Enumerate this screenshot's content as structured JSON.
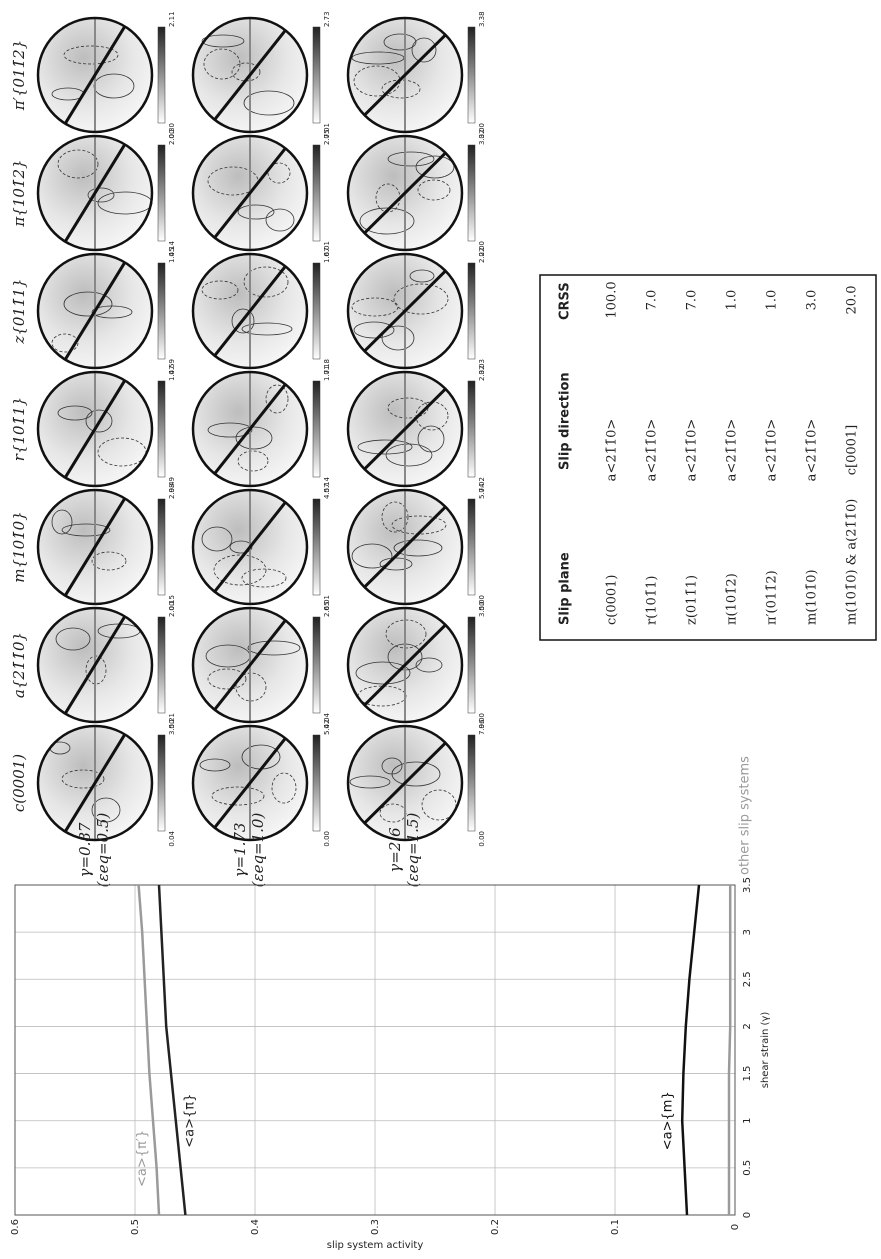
{
  "pole_figures": {
    "columns": [
      "c(0001)",
      "a{21̄1̄0}",
      "m{101̄0}",
      "r{101̄1}",
      "z{011̄1}",
      "π{101̄2}",
      "π′{011̄2}"
    ],
    "rows": [
      {
        "strain": "γ=0.87",
        "eq": "(εeq=0.5)"
      },
      {
        "strain": "γ=1.73",
        "eq": "(εeq=1.0)"
      },
      {
        "strain": "γ=2.6",
        "eq": "(εeq=1.5)"
      }
    ],
    "colorbars": [
      [
        {
          "max": "3.50",
          "min": "0.04"
        },
        {
          "max": "5.42",
          "min": "0.00"
        },
        {
          "max": "7.96",
          "min": "0.00"
        }
      ],
      [
        {
          "max": "2.00",
          "min": "0.21"
        },
        {
          "max": "2.65",
          "min": "0.04"
        },
        {
          "max": "3.50",
          "min": "0.00"
        }
      ],
      [
        {
          "max": "2.98",
          "min": "0.15"
        },
        {
          "max": "4.57",
          "min": "0.01"
        },
        {
          "max": "5.74",
          "min": "0.00"
        }
      ],
      [
        {
          "max": "1.47",
          "min": "0.49"
        },
        {
          "max": "1.71",
          "min": "0.14"
        },
        {
          "max": "2.32",
          "min": "0.02"
        }
      ],
      [
        {
          "max": "1.45",
          "min": "0.59"
        },
        {
          "max": "1.67",
          "min": "0.18"
        },
        {
          "max": "2.22",
          "min": "0.03"
        }
      ],
      [
        {
          "max": "2.00",
          "min": "0.14"
        },
        {
          "max": "2.75",
          "min": "0.01"
        },
        {
          "max": "3.32",
          "min": "0.00"
        }
      ],
      [
        {
          "max": "2.11",
          "min": "0.30"
        },
        {
          "max": "2.73",
          "min": "0.01"
        },
        {
          "max": "3.38",
          "min": "0.00"
        }
      ]
    ]
  },
  "chart_data": {
    "type": "line",
    "x": [
      0,
      0.5,
      1,
      1.5,
      2,
      2.5,
      3,
      3.5
    ],
    "series": [
      {
        "name": "<a>{π′}",
        "color": "#9a9a9a",
        "values": [
          0.48,
          0.482,
          0.485,
          0.488,
          0.49,
          0.492,
          0.494,
          0.497
        ]
      },
      {
        "name": "<a>{π}",
        "color": "#222222",
        "values": [
          0.458,
          0.462,
          0.466,
          0.47,
          0.474,
          0.476,
          0.478,
          0.48
        ]
      },
      {
        "name": "<a>{m}",
        "color": "#111111",
        "values": [
          0.04,
          0.042,
          0.044,
          0.043,
          0.041,
          0.038,
          0.034,
          0.03
        ]
      },
      {
        "name": "other slip systems",
        "color": "#9a9a9a",
        "values": [
          0.005,
          0.005,
          0.005,
          0.005,
          0.004,
          0.004,
          0.004,
          0.004
        ]
      }
    ],
    "xlabel": "shear strain (γ)",
    "ylabel": "slip system activity",
    "xlim": [
      0,
      3.5
    ],
    "xticks": [
      0,
      0.5,
      1,
      1.5,
      2,
      2.5,
      3,
      3.5
    ],
    "ylim": [
      0,
      0.6
    ],
    "yticks": [
      0,
      0.1,
      0.2,
      0.3,
      0.4,
      0.5,
      0.6
    ],
    "grid": true
  },
  "table": {
    "header": [
      "Slip plane",
      "Slip direction",
      "CRSS"
    ],
    "rows": [
      [
        "c(0001)",
        "a<21̄1̄0>",
        "100.0"
      ],
      [
        "r(101̄1)",
        "a<21̄1̄0>",
        "7.0"
      ],
      [
        "z(011̄1)",
        "a<21̄1̄0>",
        "7.0"
      ],
      [
        "π(101̄2)",
        "a<21̄1̄0>",
        "1.0"
      ],
      [
        "π′(011̄2)",
        "a<21̄1̄0>",
        "1.0"
      ],
      [
        "m(101̄0)",
        "a<21̄1̄0>",
        "3.0"
      ],
      [
        "m(101̄0) & a(21̄1̄0)",
        "c[0001]",
        "20.0"
      ]
    ]
  }
}
